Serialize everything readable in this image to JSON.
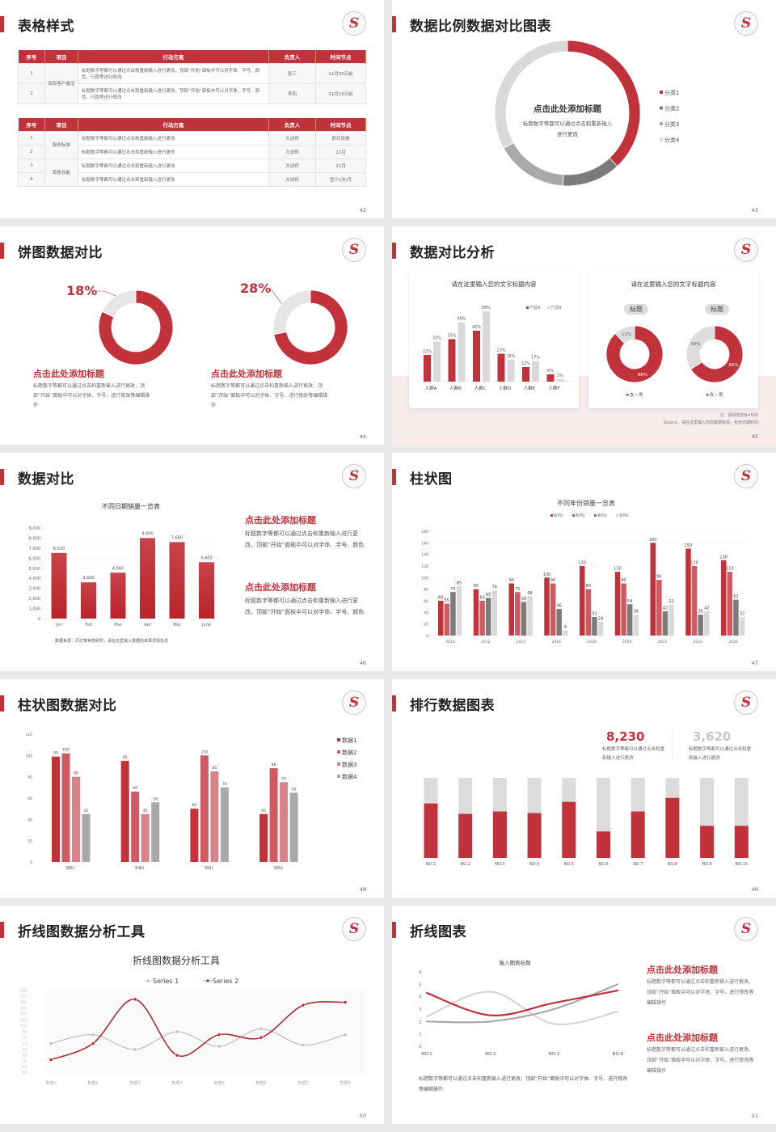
{
  "colors": {
    "red": "#c1323b",
    "red2": "#cf5a62",
    "red3": "#d98288",
    "gray_dark": "#7b7b7b",
    "gray_mid": "#a9a9a9",
    "gray_light": "#d9d9d9"
  },
  "logo_letter": "S",
  "s42": {
    "title": "表格样式",
    "page": "42",
    "headers": [
      "序号",
      "项目",
      "行动方案",
      "负责人",
      "时间节点"
    ],
    "table1": {
      "group": "保有客户激活",
      "rows": [
        {
          "no": "1",
          "plan": "标题数字等都可以通过点击和重新输入进行更改，顶部“开始”面板中可以对字体、字号、颜色、行距等进行修改",
          "owner": "张三",
          "time": "11月30日前"
        },
        {
          "no": "2",
          "plan": "标题数字等都可以通过点击和重新输入进行更改，顶部“开始”面板中可以对字体、字号、颜色、行距等进行修改",
          "owner": "李四",
          "time": "11月15日前"
        }
      ]
    },
    "table2": {
      "groups": [
        "服务标准",
        "销售技能"
      ],
      "rows": [
        {
          "no": "1",
          "plan": "标题数字等都可以通过点击和重新输入进行更改",
          "owner": "大训师",
          "time": "即日实施"
        },
        {
          "no": "2",
          "plan": "标题数字等都可以通过点击和重新输入进行更改",
          "owner": "大训师",
          "time": "11月"
        },
        {
          "no": "3",
          "plan": "标题数字等都可以通过点击和重新输入进行更改",
          "owner": "大训师",
          "time": "11月"
        },
        {
          "no": "4",
          "plan": "标题数字等都可以通过点击和重新输入进行更改",
          "owner": "大训师",
          "time": "至少1次/月"
        }
      ]
    }
  },
  "s43": {
    "title": "数据比例数据对比图表",
    "page": "43",
    "center_title": "点击此处添加标题",
    "center_desc": "标题数字等都可以通过点击和重新输入进行更改",
    "chart_data": {
      "type": "pie",
      "categories": [
        "分类1",
        "分类2",
        "分类3",
        "分类4"
      ],
      "values": [
        38,
        13,
        16,
        33
      ],
      "legend": "right"
    }
  },
  "s44": {
    "title": "饼图数据对比",
    "page": "44",
    "items": [
      {
        "pct": "18%",
        "value": 18,
        "heading": "点击此处添加标题",
        "desc": "标题数字等都可以通过点击和重新输入进行更改，顶部“开始”面板中可以对字体、字号、进行修改等编辑操作"
      },
      {
        "pct": "28%",
        "value": 28,
        "heading": "点击此处添加标题",
        "desc": "标题数字等都可以通过点击和重新输入进行更改，顶部“开始”面板中可以对字体、字号、进行修改等编辑操作"
      }
    ]
  },
  "s45": {
    "title": "数据对比分析",
    "page": "45",
    "card1_title": "请在这里输入您的文字标题内容",
    "card2_title": "请在这里输入您的文字标题内容",
    "chart_data": [
      {
        "type": "bar",
        "categories": [
          "人群A",
          "人群B",
          "人群C",
          "人群D",
          "人群E",
          "人群F"
        ],
        "series": [
          {
            "name": "产品A",
            "values": [
              22,
              35,
              42,
              23,
              12,
              6
            ]
          },
          {
            "name": "产品B",
            "values": [
              33,
              49,
              58,
              18,
              17,
              2
            ]
          }
        ],
        "unit": "%",
        "legend": "top-right"
      },
      {
        "type": "pie",
        "title": "标题",
        "categories": [
          "女",
          "男"
        ],
        "values": [
          88,
          12
        ],
        "labels": [
          "88%",
          "12%"
        ]
      },
      {
        "type": "pie",
        "title": "标题",
        "categories": [
          "女",
          "男"
        ],
        "values": [
          66,
          34
        ],
        "labels": [
          "66%",
          "34%"
        ]
      }
    ],
    "note": "注：调研样本N=500",
    "source": "Source：请在这里输入您的数据来源，包含日期时间"
  },
  "s46": {
    "title": "数据对比",
    "page": "46",
    "source": "数据来源：历次季等普研究，请在这里输入数据的来源详情信息",
    "chart_data": {
      "type": "bar",
      "title": "不同日期销量一览表",
      "categories": [
        "Jan",
        "Feb",
        "Mar",
        "Apr",
        "May",
        "June"
      ],
      "values": [
        6520,
        3600,
        4560,
        8000,
        7600,
        5600
      ],
      "labels": [
        "6,520",
        "3,600",
        "4,560",
        "8,000",
        "7,600",
        "5,600"
      ],
      "ylim": [
        0,
        9000
      ],
      "yticks": [
        "0",
        "1,000",
        "2,000",
        "3,000",
        "4,000",
        "5,000",
        "6,000",
        "7,000",
        "8,000",
        "9,000"
      ],
      "grid": true
    },
    "blocks": [
      {
        "heading": "点击此处添加标题",
        "desc": "标题数字等都可以通过点击和重新输入进行更改，顶部“开始”面板中可以对字体、字号、颜色"
      },
      {
        "heading": "点击此处添加标题",
        "desc": "标题数字等都可以通过点击和重新输入进行更改，顶部“开始”面板中可以对字体、字号、颜色"
      }
    ]
  },
  "s47": {
    "title": "柱状图",
    "page": "47",
    "chart_data": {
      "type": "bar",
      "title": "不同年份销量一览表",
      "categories": [
        "2010",
        "2012",
        "2014",
        "2016",
        "2018",
        "2020",
        "2022",
        "2024",
        "2026"
      ],
      "series": [
        {
          "name": "系列1",
          "values": [
            60,
            80,
            90,
            100,
            120,
            110,
            160,
            150,
            130
          ]
        },
        {
          "name": "系列2",
          "values": [
            55,
            60,
            75,
            90,
            80,
            90,
            96,
            120,
            110
          ]
        },
        {
          "name": "系列3",
          "values": [
            75,
            65,
            58,
            46,
            32,
            54,
            42,
            36,
            62
          ]
        },
        {
          "name": "系列4",
          "values": [
            85,
            78,
            68,
            9,
            24,
            36,
            53,
            42,
            32
          ]
        }
      ],
      "ylim": [
        0,
        180
      ],
      "yticks": [
        0,
        20,
        40,
        60,
        80,
        100,
        120,
        140,
        160,
        180
      ],
      "legend": "top",
      "grid": true
    }
  },
  "s48": {
    "title": "柱状图数据对比",
    "page": "48",
    "chart_data": {
      "type": "bar",
      "categories": [
        "项目1",
        "项目2",
        "项目3",
        "项目4"
      ],
      "series": [
        {
          "name": "数据1",
          "values": [
            99,
            95,
            50,
            45
          ]
        },
        {
          "name": "数据2",
          "values": [
            102,
            66,
            100,
            88
          ]
        },
        {
          "name": "数据3",
          "values": [
            80,
            45,
            85,
            75
          ]
        },
        {
          "name": "数据4",
          "values": [
            45,
            56,
            70,
            65
          ]
        }
      ],
      "ylim": [
        0,
        120
      ],
      "yticks": [
        0,
        20,
        40,
        60,
        80,
        100,
        120
      ],
      "legend": "right"
    }
  },
  "s49": {
    "title": "排行数据图表",
    "page": "49",
    "stats": [
      {
        "value": "8,230",
        "desc": "标题数字等都可以通过点击和重新输入进行更改"
      },
      {
        "value": "3,620",
        "desc": "标题数字等都可以通过点击和重新输入进行更改"
      }
    ],
    "chart_data": {
      "type": "bar",
      "stacked_percent": true,
      "categories": [
        "NO.1",
        "NO.2",
        "NO.3",
        "NO.4",
        "NO.5",
        "NO.6",
        "NO.7",
        "NO.8",
        "NO.9",
        "NO.10"
      ],
      "values": [
        0.68,
        0.55,
        0.58,
        0.56,
        0.7,
        0.33,
        0.58,
        0.75,
        0.4,
        0.4
      ]
    }
  },
  "s50": {
    "title": "折线图数据分析工具",
    "page": "50",
    "chart_data": {
      "type": "line",
      "title": "折线图数据分析工具",
      "categories": [
        "数据1",
        "数据2",
        "数据3",
        "数据4",
        "数据5",
        "数据6",
        "数据7",
        "数据8"
      ],
      "series": [
        {
          "name": "Series 1",
          "values": [
            50,
            80,
            30,
            90,
            40,
            100,
            45,
            80
          ]
        },
        {
          "name": "Series 2",
          "values": [
            -5,
            50,
            200,
            10,
            80,
            70,
            180,
            190
          ]
        }
      ],
      "ylim": [
        -50,
        230
      ],
      "yticks": [
        -50,
        -30,
        -10,
        10,
        30,
        50,
        70,
        90,
        110,
        130,
        150,
        170,
        190,
        210,
        230
      ],
      "legend": "top",
      "smooth": true
    }
  },
  "s51": {
    "title": "折线图表",
    "page": "51",
    "bottom_desc": "标题数字等都可以通过点击和重新输入进行更改，顶部“开始”面板中可以对字体、字号、进行修改等编辑操作",
    "chart_data": {
      "type": "line",
      "title": "输入图表标题",
      "categories": [
        "NO.1",
        "NO.2",
        "NO.3",
        "NO.4"
      ],
      "series": [
        {
          "values": [
            4.3,
            2.5,
            3.5,
            4.5
          ]
        },
        {
          "values": [
            2.4,
            4.4,
            1.8,
            2.8
          ]
        },
        {
          "values": [
            2.0,
            2.0,
            3.0,
            5.0
          ]
        }
      ],
      "ylim": [
        0,
        6
      ],
      "yticks": [
        0,
        1,
        2,
        3,
        4,
        5,
        6
      ],
      "smooth": true
    },
    "blocks": [
      {
        "heading": "点击此处添加标题",
        "desc": "标题数字等都可以通过点击和重新输入进行更改，顶部“开始”面板中可以对字体、字号、进行修改等编辑操作"
      },
      {
        "heading": "点击此处添加标题",
        "desc": "标题数字等都可以通过点击和重新输入进行更改，顶部“开始”面板中可以对字体、字号、进行修改等编辑操作"
      }
    ]
  }
}
